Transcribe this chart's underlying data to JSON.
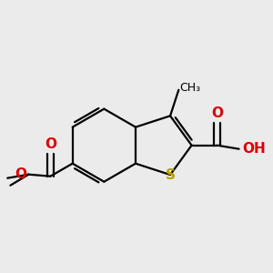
{
  "bg_color": "#ebebeb",
  "bond_color": "#000000",
  "bond_width": 1.6,
  "dbo": 0.055,
  "atom_colors": {
    "S": "#b8a000",
    "O": "#dd0000",
    "C": "#000000"
  },
  "font_size_atom": 11,
  "font_size_label": 9,
  "bl": 0.62
}
